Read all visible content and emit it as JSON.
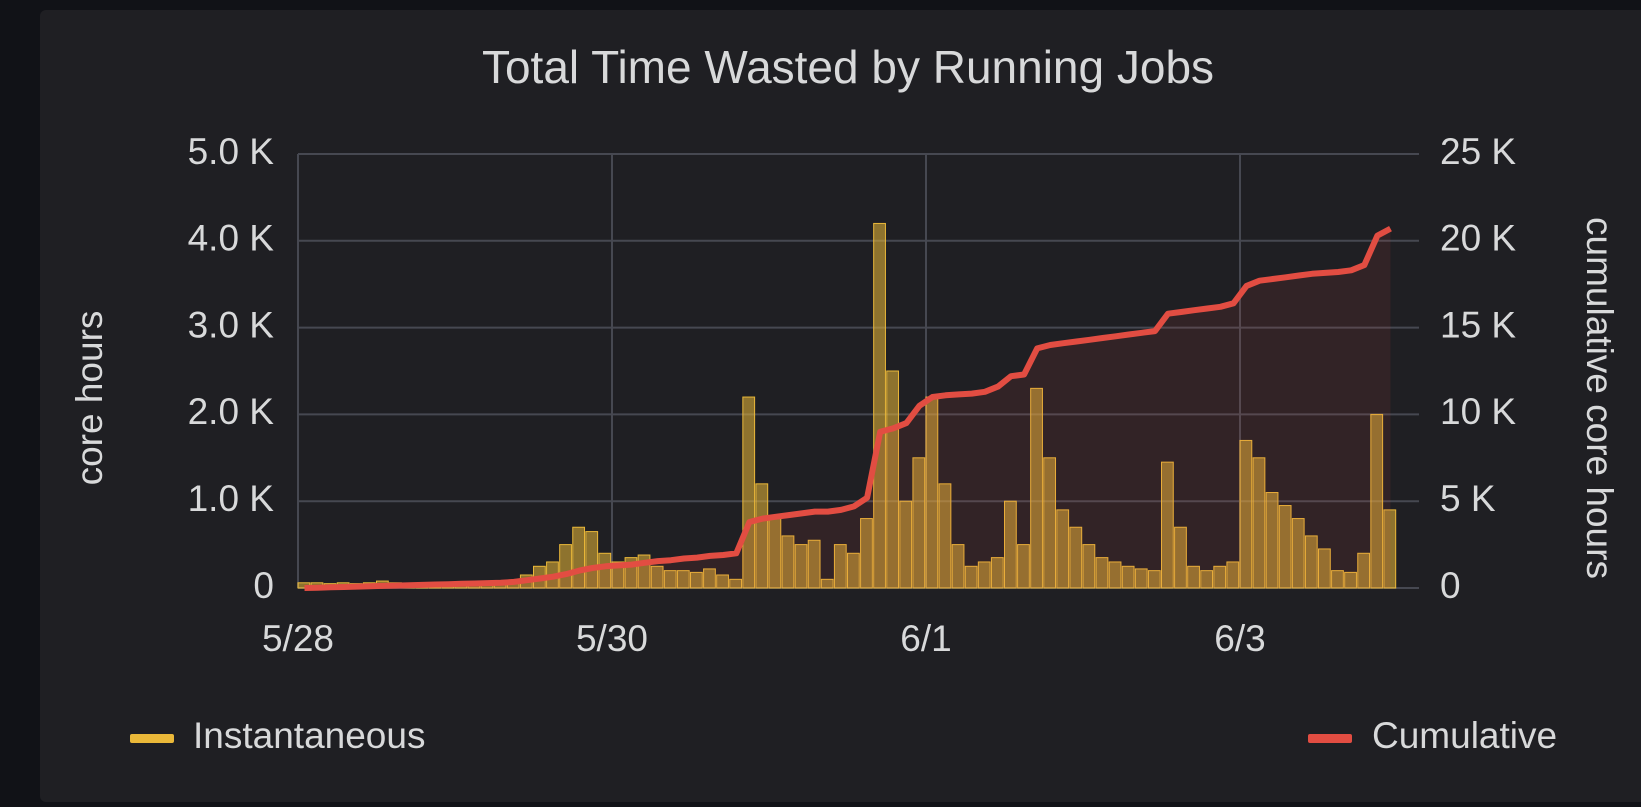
{
  "chart_data": {
    "type": "bar",
    "title": "Total Time Wasted by Running Jobs",
    "ylabel": "core hours",
    "y2label": "cumulative core hours",
    "categories": [
      "5/28",
      null,
      null,
      null,
      null,
      null,
      null,
      null,
      null,
      null,
      null,
      null,
      null,
      null,
      null,
      null,
      null,
      null,
      null,
      null,
      null,
      null,
      null,
      null,
      "5/30",
      null,
      null,
      null,
      null,
      null,
      null,
      null,
      null,
      null,
      null,
      null,
      null,
      null,
      null,
      null,
      null,
      null,
      null,
      null,
      null,
      null,
      null,
      null,
      "6/1",
      null,
      null,
      null,
      null,
      null,
      null,
      null,
      null,
      null,
      null,
      null,
      null,
      null,
      null,
      null,
      null,
      null,
      null,
      null,
      null,
      null,
      null,
      null,
      "6/3",
      null,
      null,
      null,
      null,
      null,
      null,
      null,
      null,
      null,
      null,
      null
    ],
    "series": [
      {
        "name": "Instantaneous",
        "color": "#eab839",
        "type": "bar",
        "values": [
          60,
          60,
          50,
          60,
          50,
          60,
          80,
          60,
          50,
          50,
          50,
          60,
          50,
          60,
          50,
          60,
          80,
          150,
          250,
          300,
          500,
          700,
          650,
          400,
          300,
          350,
          380,
          250,
          200,
          200,
          180,
          220,
          150,
          100,
          2200,
          1200,
          800,
          600,
          500,
          550,
          100,
          500,
          400,
          800,
          4200,
          2500,
          1000,
          1500,
          2200,
          1200,
          500,
          250,
          300,
          350,
          1000,
          500,
          2300,
          1500,
          900,
          700,
          500,
          350,
          300,
          250,
          220,
          200,
          1450,
          700,
          250,
          200,
          250,
          300,
          1700,
          1500,
          1100,
          950,
          800,
          600,
          450,
          200,
          180,
          400,
          2000,
          900
        ]
      },
      {
        "name": "Cumulative",
        "color": "#e24d42",
        "type": "line",
        "axis": "y2",
        "values": [
          0,
          20,
          40,
          60,
          80,
          100,
          120,
          140,
          160,
          180,
          200,
          220,
          240,
          260,
          280,
          300,
          350,
          450,
          550,
          650,
          800,
          1000,
          1150,
          1250,
          1300,
          1350,
          1450,
          1550,
          1600,
          1700,
          1750,
          1850,
          1900,
          2000,
          3800,
          4000,
          4100,
          4200,
          4300,
          4400,
          4400,
          4500,
          4700,
          5200,
          9000,
          9200,
          9500,
          10500,
          11000,
          11100,
          11150,
          11200,
          11300,
          11600,
          12200,
          12300,
          13800,
          14000,
          14100,
          14200,
          14300,
          14400,
          14500,
          14600,
          14700,
          14800,
          15800,
          15900,
          16000,
          16100,
          16200,
          16400,
          17400,
          17700,
          17800,
          17900,
          18000,
          18100,
          18150,
          18200,
          18300,
          18600,
          20300,
          20700
        ]
      }
    ],
    "ylim": [
      0,
      5000
    ],
    "yticks": [
      0,
      {
        "value": 1000,
        "label": "1.0 K"
      },
      {
        "value": 2000,
        "label": "2.0 K"
      },
      {
        "value": 3000,
        "label": "3.0 K"
      },
      {
        "value": 4000,
        "label": "4.0 K"
      },
      {
        "value": 5000,
        "label": "5.0 K"
      }
    ],
    "y2lim": [
      0,
      25000
    ],
    "y2ticks": [
      0,
      {
        "value": 5000,
        "label": "5 K"
      },
      {
        "value": 10000,
        "label": "10 K"
      },
      {
        "value": 15000,
        "label": "15 K"
      },
      {
        "value": 20000,
        "label": "20 K"
      },
      {
        "value": 25000,
        "label": "25 K"
      }
    ],
    "grid": true
  }
}
